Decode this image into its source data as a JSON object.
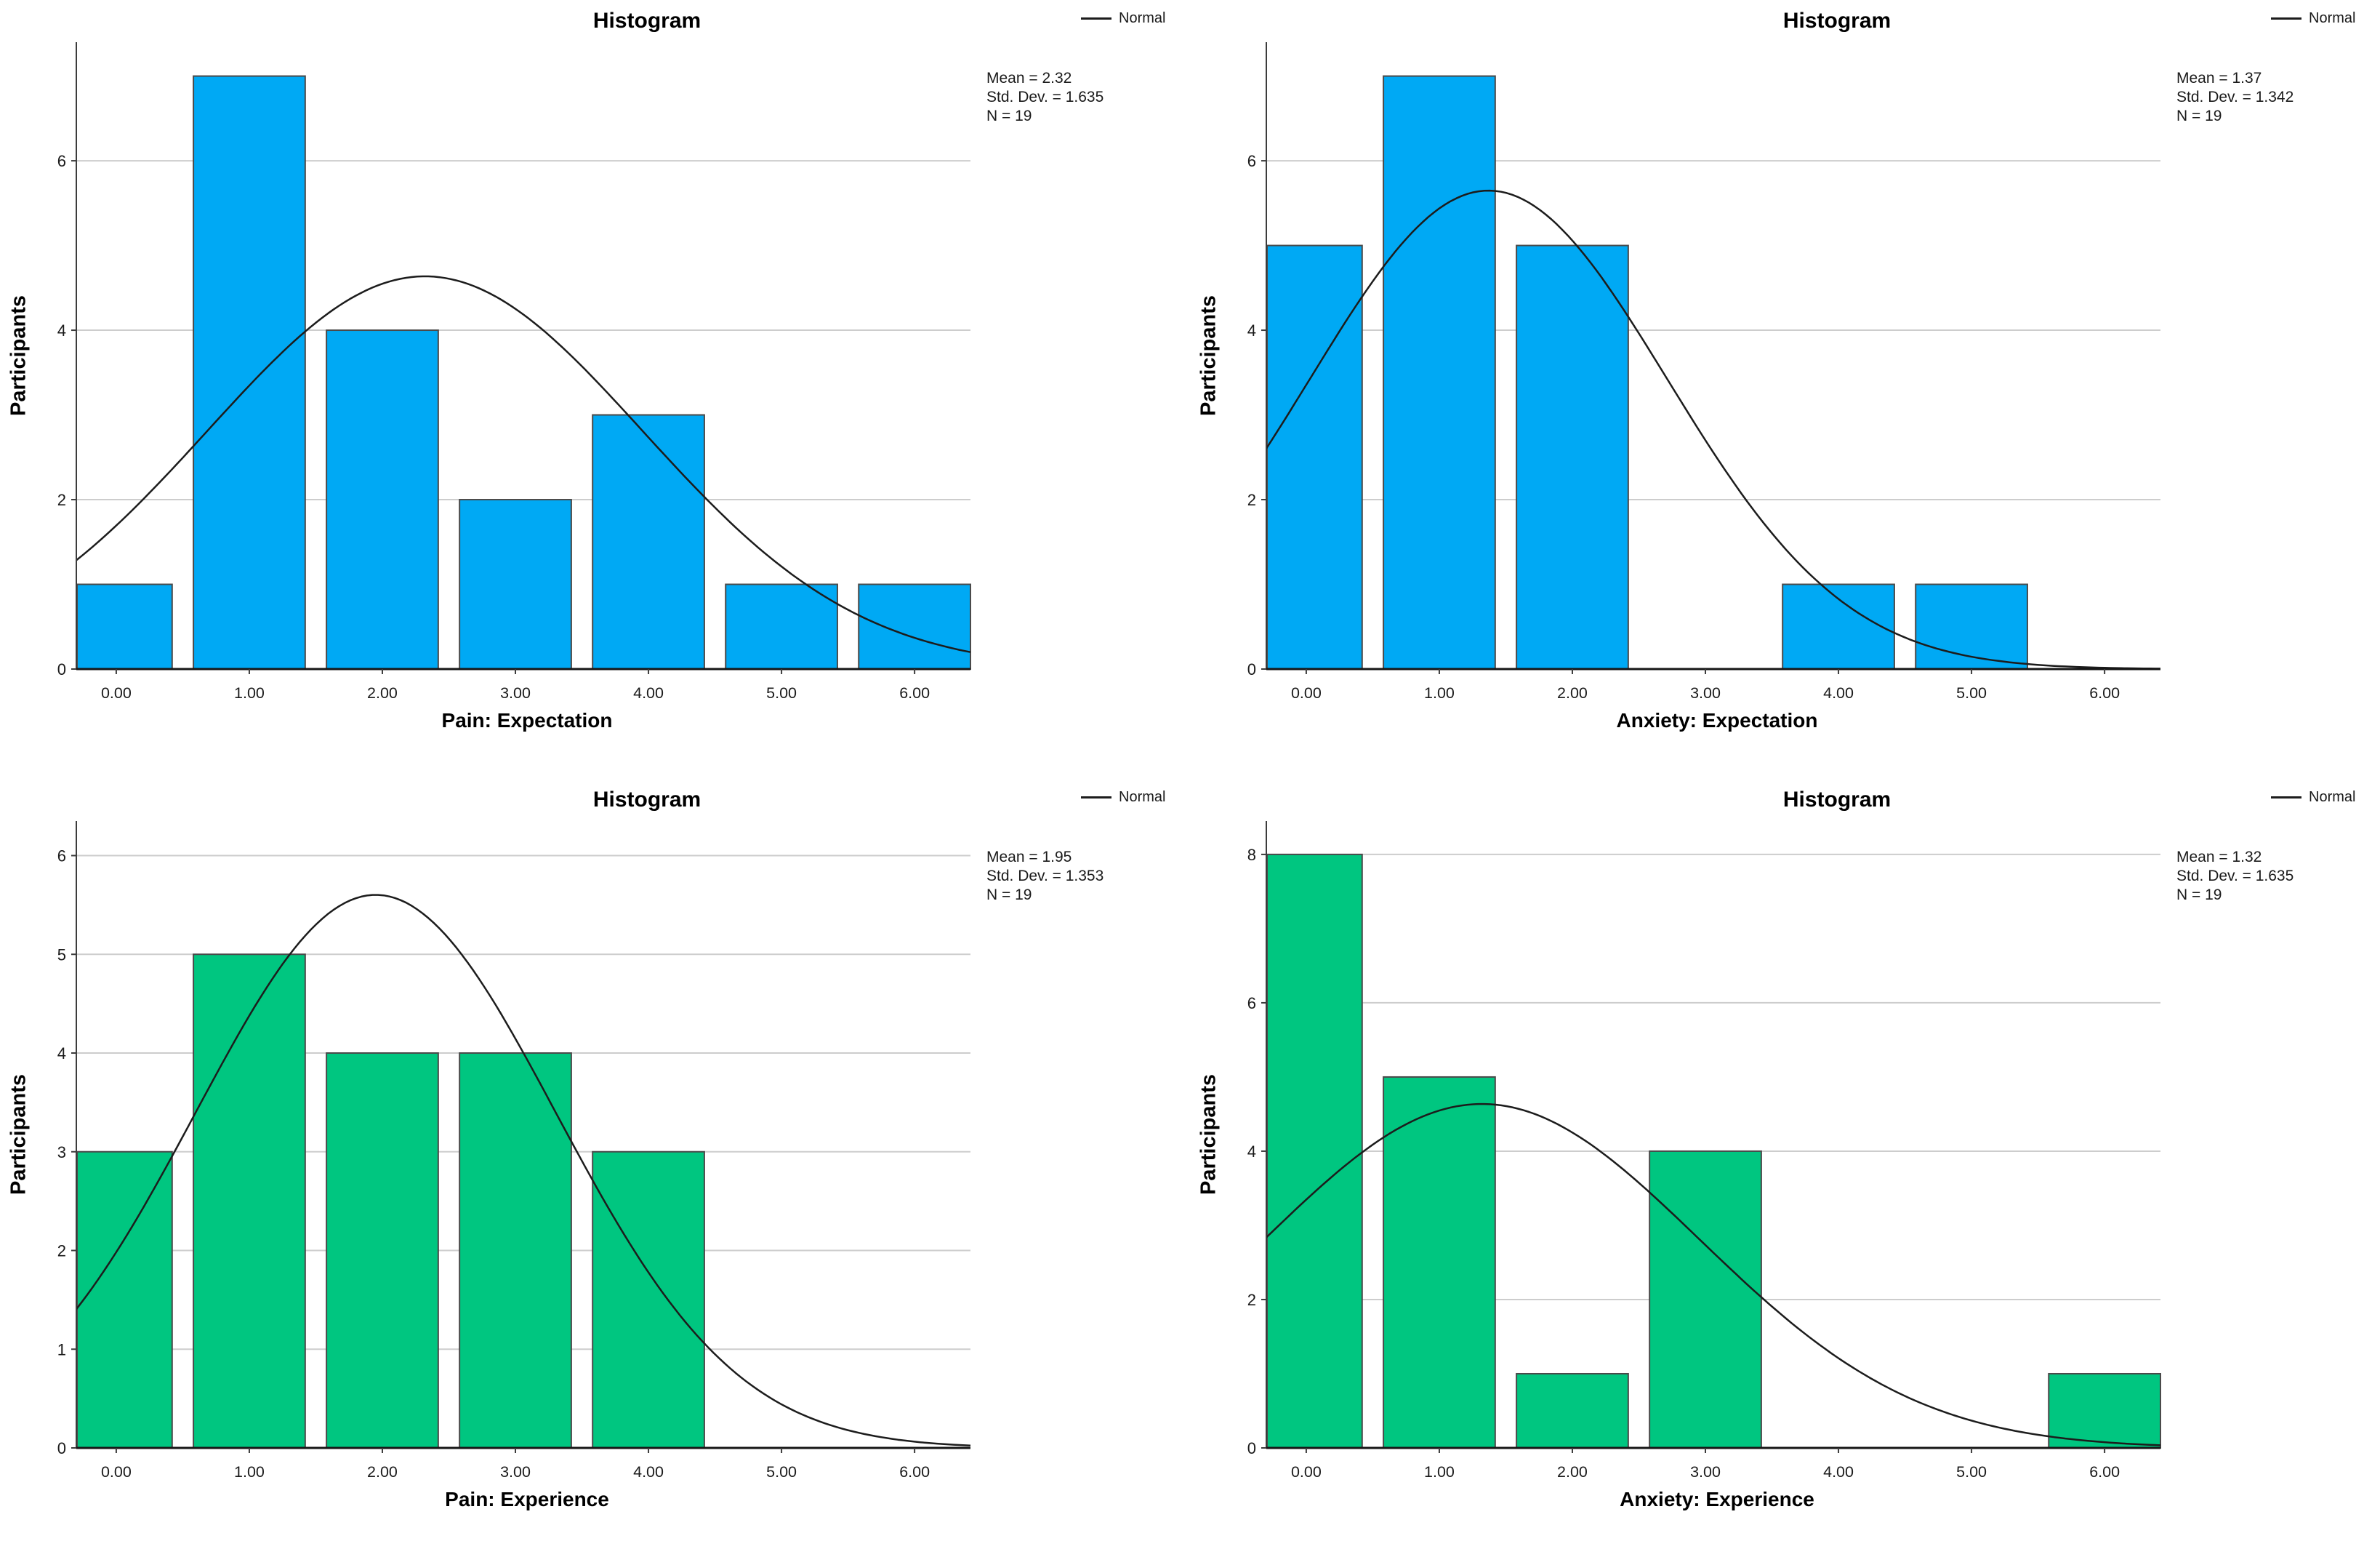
{
  "page": {
    "background": "#ffffff"
  },
  "chart_data": [
    {
      "type": "bar",
      "chart_kind": "histogram",
      "title": "Histogram",
      "legend": [
        "Normal"
      ],
      "legend_position": "top-right",
      "xlabel": "Pain: Expectation",
      "ylabel": "Participants",
      "categories": [
        "0.00",
        "1.00",
        "2.00",
        "3.00",
        "4.00",
        "5.00",
        "6.00"
      ],
      "x": [
        0,
        1,
        2,
        3,
        4,
        5,
        6
      ],
      "values": [
        1,
        7,
        4,
        2,
        3,
        1,
        1
      ],
      "normal_curve": {
        "mean": 2.32,
        "std_dev": 1.635,
        "n": 19
      },
      "stats_lines": [
        "Mean = 2.32",
        "Std. Dev. = 1.635",
        "N = 19"
      ],
      "ylim": [
        0,
        7.4
      ],
      "yticks": [
        0,
        2,
        4,
        6
      ],
      "xlim": [
        -0.3,
        6.42
      ],
      "grid": true,
      "colors": {
        "bar": "#00A9F4",
        "bar_border": "#4a4a4a",
        "curve": "#1c1c1c",
        "grid": "#cdcdcd",
        "axis": "#3c3c3c",
        "baseline": "#161616"
      }
    },
    {
      "type": "bar",
      "chart_kind": "histogram",
      "title": "Histogram",
      "legend": [
        "Normal"
      ],
      "legend_position": "top-right",
      "xlabel": "Anxiety: Expectation",
      "ylabel": "Participants",
      "categories": [
        "0.00",
        "1.00",
        "2.00",
        "3.00",
        "4.00",
        "5.00",
        "6.00"
      ],
      "x": [
        0,
        1,
        2,
        3,
        4,
        5,
        6
      ],
      "values": [
        5,
        7,
        5,
        0,
        1,
        1,
        0
      ],
      "normal_curve": {
        "mean": 1.37,
        "std_dev": 1.342,
        "n": 19
      },
      "stats_lines": [
        "Mean = 1.37",
        "Std. Dev. = 1.342",
        "N = 19"
      ],
      "ylim": [
        0,
        7.4
      ],
      "yticks": [
        0,
        2,
        4,
        6
      ],
      "xlim": [
        -0.3,
        6.42
      ],
      "grid": true,
      "colors": {
        "bar": "#00A9F4",
        "bar_border": "#4a4a4a",
        "curve": "#1c1c1c",
        "grid": "#cdcdcd",
        "axis": "#3c3c3c",
        "baseline": "#161616"
      }
    },
    {
      "type": "bar",
      "chart_kind": "histogram",
      "title": "Histogram",
      "legend": [
        "Normal"
      ],
      "legend_position": "top-right",
      "xlabel": "Pain: Experience",
      "ylabel": "Participants",
      "categories": [
        "0.00",
        "1.00",
        "2.00",
        "3.00",
        "4.00",
        "5.00",
        "6.00"
      ],
      "x": [
        0,
        1,
        2,
        3,
        4,
        5,
        6
      ],
      "values": [
        3,
        5,
        4,
        4,
        3,
        0,
        0
      ],
      "normal_curve": {
        "mean": 1.95,
        "std_dev": 1.353,
        "n": 19
      },
      "stats_lines": [
        "Mean = 1.95",
        "Std. Dev. = 1.353",
        "N = 19"
      ],
      "ylim": [
        0,
        6.35
      ],
      "yticks": [
        0,
        1,
        2,
        3,
        4,
        5,
        6
      ],
      "xlim": [
        -0.3,
        6.42
      ],
      "grid": true,
      "colors": {
        "bar": "#00C680",
        "bar_border": "#4a4a4a",
        "curve": "#1c1c1c",
        "grid": "#cdcdcd",
        "axis": "#3c3c3c",
        "baseline": "#161616"
      }
    },
    {
      "type": "bar",
      "chart_kind": "histogram",
      "title": "Histogram",
      "legend": [
        "Normal"
      ],
      "legend_position": "top-right",
      "xlabel": "Anxiety: Experience",
      "ylabel": "Participants",
      "categories": [
        "0.00",
        "1.00",
        "2.00",
        "3.00",
        "4.00",
        "5.00",
        "6.00"
      ],
      "x": [
        0,
        1,
        2,
        3,
        4,
        5,
        6
      ],
      "values": [
        8,
        5,
        1,
        4,
        0,
        0,
        1
      ],
      "normal_curve": {
        "mean": 1.32,
        "std_dev": 1.635,
        "n": 19
      },
      "stats_lines": [
        "Mean = 1.32",
        "Std. Dev. = 1.635",
        "N = 19"
      ],
      "ylim": [
        0,
        8.45
      ],
      "yticks": [
        0,
        2,
        4,
        6,
        8
      ],
      "xlim": [
        -0.3,
        6.42
      ],
      "grid": true,
      "colors": {
        "bar": "#00C680",
        "bar_border": "#4a4a4a",
        "curve": "#1c1c1c",
        "grid": "#cdcdcd",
        "axis": "#3c3c3c",
        "baseline": "#161616"
      }
    }
  ]
}
